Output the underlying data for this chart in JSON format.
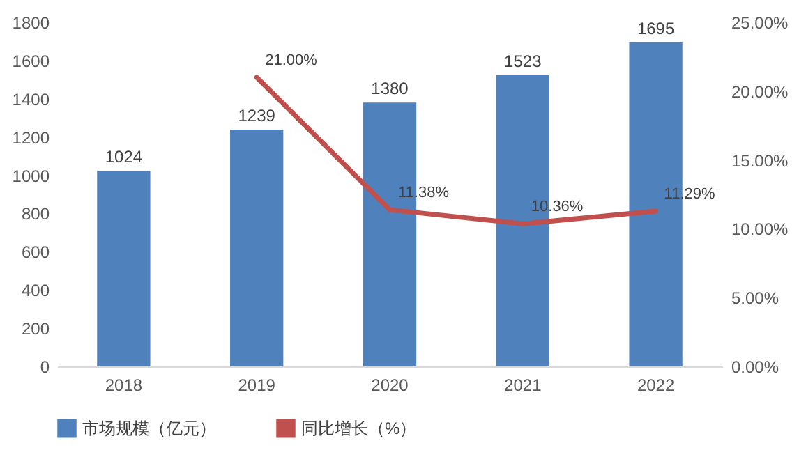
{
  "chart_data": {
    "type": "bar",
    "categories": [
      "2018",
      "2019",
      "2020",
      "2021",
      "2022"
    ],
    "series": [
      {
        "name": "市场规模（亿元）",
        "axis": "y",
        "color": "#4f81bd",
        "values": [
          1024,
          1239,
          1380,
          1523,
          1695
        ],
        "value_labels": [
          "1024",
          "1239",
          "1380",
          "1523",
          "1695"
        ]
      },
      {
        "name": "同比增长（%）",
        "type": "line",
        "axis": "y2",
        "color": "#c0504d",
        "values": [
          null,
          21.0,
          11.38,
          10.36,
          11.29
        ],
        "value_labels": [
          null,
          "21.00%",
          "11.38%",
          "10.36%",
          "11.29%"
        ]
      }
    ],
    "ylim": [
      0,
      1800
    ],
    "yticks": [
      0,
      200,
      400,
      600,
      800,
      1000,
      1200,
      1400,
      1600,
      1800
    ],
    "y2lim": [
      0,
      25
    ],
    "y2ticks": [
      {
        "value": 0,
        "label": "0.00%"
      },
      {
        "value": 5,
        "label": "5.00%"
      },
      {
        "value": 10,
        "label": "10.00%"
      },
      {
        "value": 15,
        "label": "15.00%"
      },
      {
        "value": 20,
        "label": "20.00%"
      },
      {
        "value": 25,
        "label": "25.00%"
      }
    ],
    "legend": "bottom"
  }
}
